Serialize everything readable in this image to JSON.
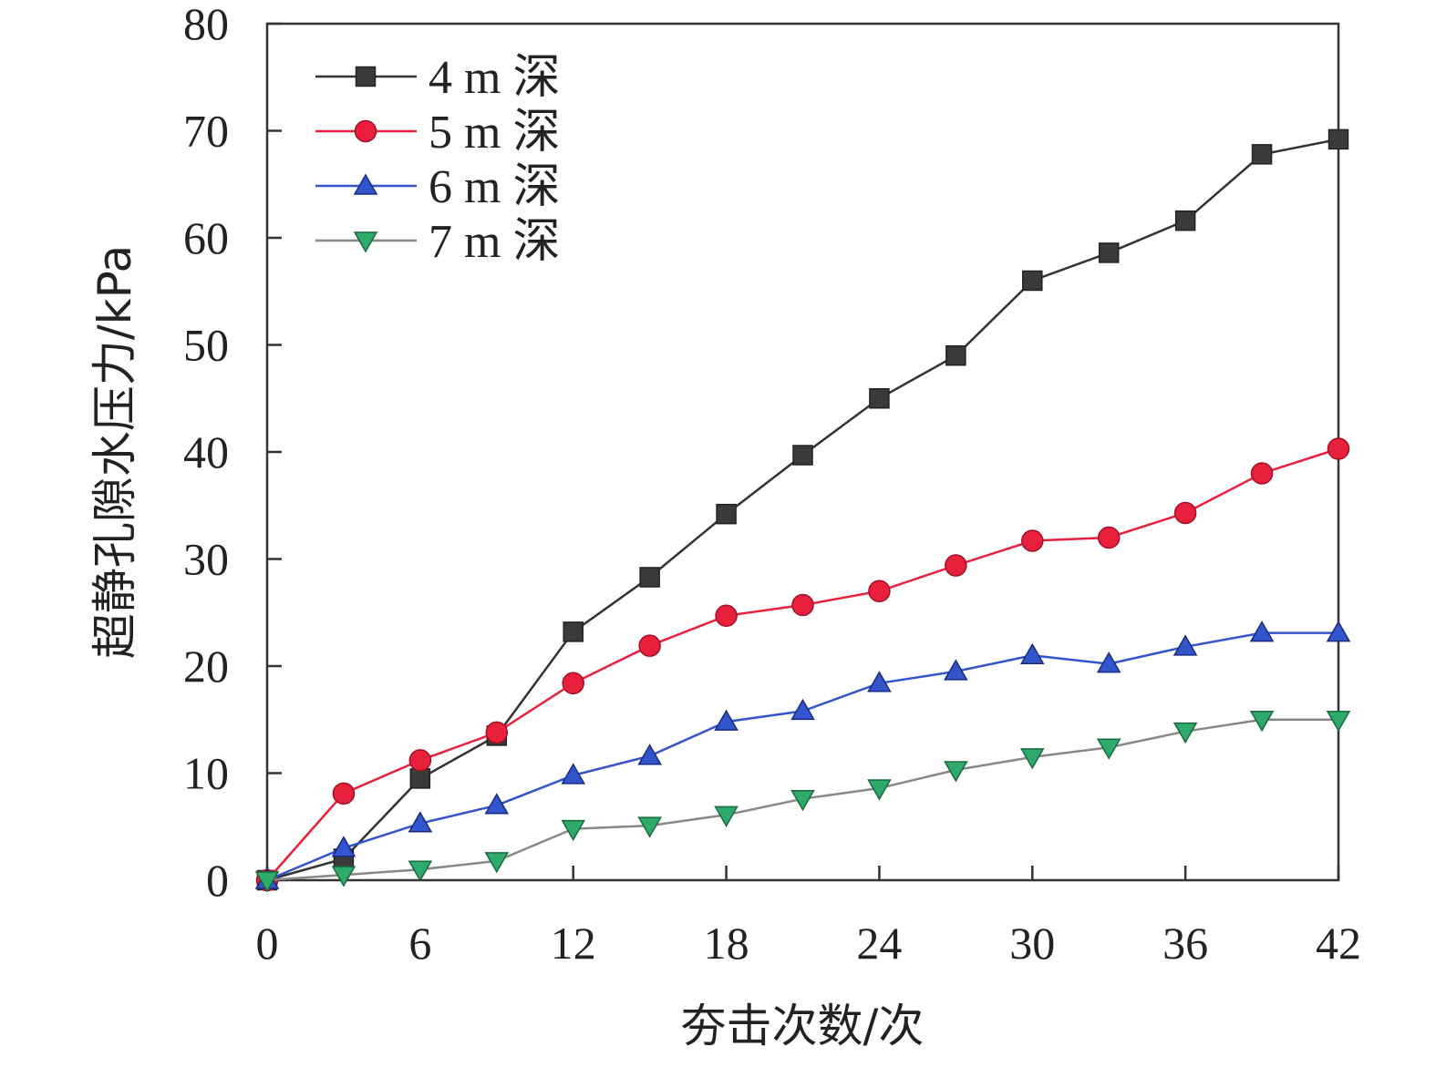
{
  "chart_data": {
    "type": "line",
    "title": "",
    "xlabel": "夯击次数/次",
    "ylabel": "超静孔隙水压力/kPa",
    "xlim": [
      0,
      42
    ],
    "ylim": [
      0,
      80
    ],
    "xticks": [
      0,
      6,
      12,
      18,
      24,
      30,
      36,
      42
    ],
    "yticks": [
      0,
      10,
      20,
      30,
      40,
      50,
      60,
      70,
      80
    ],
    "grid": false,
    "legend_position": "top-left",
    "x": [
      0,
      3,
      6,
      9,
      12,
      15,
      18,
      21,
      24,
      27,
      30,
      33,
      36,
      39,
      42
    ],
    "series": [
      {
        "name": "4 m 深",
        "marker": "square",
        "color": "#3a3a3a",
        "values": [
          0,
          2.0,
          9.5,
          13.5,
          23.2,
          28.3,
          34.2,
          39.7,
          45.0,
          49.0,
          56.0,
          58.6,
          61.6,
          67.8,
          69.2
        ]
      },
      {
        "name": "5 m 深",
        "marker": "circle",
        "color": "#e8203c",
        "values": [
          0,
          8.1,
          11.2,
          13.8,
          18.4,
          21.9,
          24.7,
          25.7,
          27.0,
          29.4,
          31.7,
          32.0,
          34.3,
          38.0,
          40.3
        ]
      },
      {
        "name": "6 m 深",
        "marker": "triangle-up",
        "color": "#3355cc",
        "values": [
          0,
          3.0,
          5.3,
          7.0,
          9.8,
          11.6,
          14.8,
          15.8,
          18.4,
          19.5,
          21.0,
          20.2,
          21.8,
          23.1,
          23.1
        ]
      },
      {
        "name": "7 m 深",
        "marker": "triangle-down",
        "color": "#2eaa6a",
        "values": [
          0,
          0.5,
          1.0,
          1.8,
          4.8,
          5.1,
          6.1,
          7.6,
          8.6,
          10.3,
          11.5,
          12.4,
          13.9,
          15.0,
          15.0
        ]
      }
    ]
  }
}
